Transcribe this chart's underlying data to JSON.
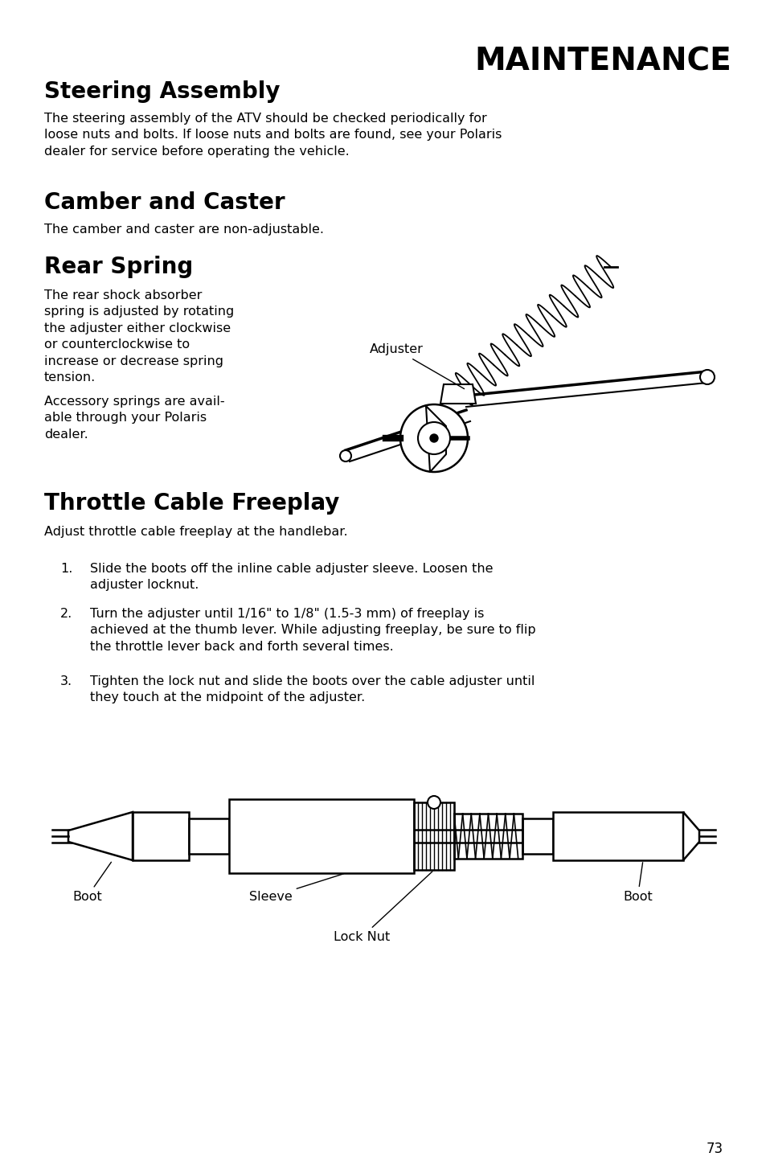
{
  "bg_color": "#ffffff",
  "text_color": "#000000",
  "page_number": "73",
  "header_title": "MAINTENANCE",
  "sections": [
    {
      "heading": "Steering Assembly",
      "body": "The steering assembly of the ATV should be checked periodically for\nloose nuts and bolts. If loose nuts and bolts are found, see your Polaris\ndealer for service before operating the vehicle."
    },
    {
      "heading": "Camber and Caster",
      "body": "The camber and caster are non-adjustable."
    },
    {
      "heading": "Rear Spring",
      "body_part1": "The rear shock absorber\nspring is adjusted by rotating\nthe adjuster either clockwise\nor counterclockwise to\nincrease or decrease spring\ntension.",
      "body_part2": "Accessory springs are avail-\nable through your Polaris\ndealer.",
      "adjuster_label": "Adjuster"
    },
    {
      "heading": "Throttle Cable Freeplay",
      "intro": "Adjust throttle cable freeplay at the handlebar.",
      "items": [
        "Slide the boots off the inline cable adjuster sleeve. Loosen the\nadjuster locknut.",
        "Turn the adjuster until 1/16\" to 1/8\" (1.5-3 mm) of freeplay is\nachieved at the thumb lever. While adjusting freeplay, be sure to flip\nthe throttle lever back and forth several times.",
        "Tighten the lock nut and slide the boots over the cable adjuster until\nthey touch at the midpoint of the adjuster."
      ],
      "diagram_labels": [
        "Boot",
        "Sleeve",
        "Lock Nut",
        "Boot"
      ]
    }
  ]
}
